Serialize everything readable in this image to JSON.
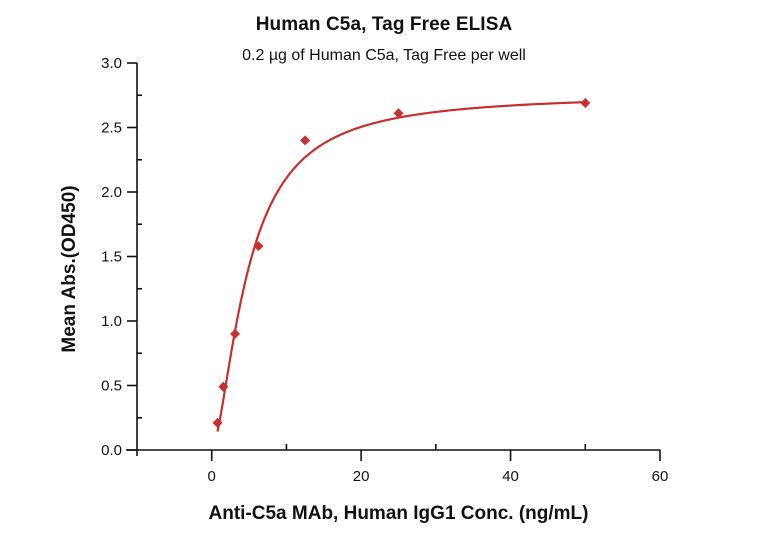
{
  "chart_data": {
    "type": "scatter",
    "title": "Human C5a, Tag Free ELISA",
    "subtitle": "0.2 µg of Human C5a, Tag Free per well",
    "xlabel": "Anti-C5a MAb, Human IgG1 Conc. (ng/mL)",
    "ylabel": "Mean Abs.(OD450)",
    "xlim": [
      -10,
      60
    ],
    "ylim": [
      0,
      3.0
    ],
    "x_ticks": [
      0,
      20,
      40,
      60
    ],
    "x_tick_labels": [
      "0",
      "20",
      "40",
      "60"
    ],
    "x_minor_ticks": [
      -10,
      10,
      30,
      50
    ],
    "y_ticks": [
      0,
      0.5,
      1.0,
      1.5,
      2.0,
      2.5,
      3.0
    ],
    "y_tick_labels": [
      "0.0",
      "0.5",
      "1.0",
      "1.5",
      "2.0",
      "2.5",
      "3.0"
    ],
    "y_minor_ticks": [
      0.25,
      0.75,
      1.25,
      1.75,
      2.25,
      2.75
    ],
    "grid": false,
    "legend": null,
    "series": [
      {
        "name": "Anti-C5a MAb, Human IgG1",
        "marker": "diamond",
        "color": "#c8302f",
        "x": [
          0.78,
          1.56,
          3.125,
          6.25,
          12.5,
          25,
          50
        ],
        "y": [
          0.21,
          0.49,
          0.9,
          1.58,
          2.4,
          2.61,
          2.69
        ],
        "fit": {
          "model": "4PL",
          "bottom": 0.0,
          "top": 2.76,
          "ec50": 4.8,
          "hill": 1.6
        }
      }
    ]
  }
}
